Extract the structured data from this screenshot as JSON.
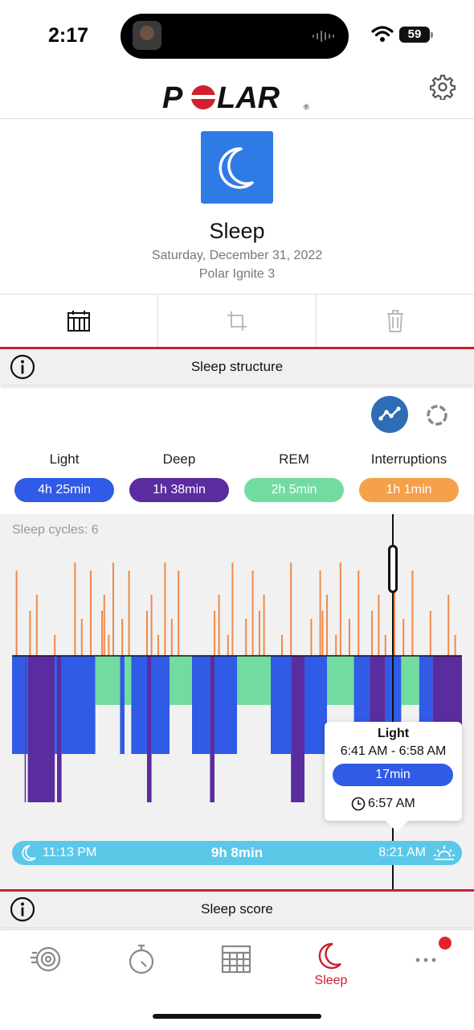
{
  "status_bar": {
    "time": "2:17",
    "battery": "59"
  },
  "header": {
    "logo": "POLAR",
    "settings_icon": "gear-icon"
  },
  "hero": {
    "icon": "moon-icon",
    "title": "Sleep",
    "date": "Saturday, December 31, 2022",
    "device": "Polar Ignite 3"
  },
  "toolbar": {
    "items": [
      {
        "icon": "calendar-icon",
        "enabled": true
      },
      {
        "icon": "crop-icon",
        "enabled": false
      },
      {
        "icon": "trash-icon",
        "enabled": false
      }
    ]
  },
  "sleep_structure": {
    "label": "Sleep structure"
  },
  "stats": [
    {
      "label": "Light",
      "value": "4h 25min",
      "color": "#2f5be6"
    },
    {
      "label": "Deep",
      "value": "1h 38min",
      "color": "#5a2ca0"
    },
    {
      "label": "REM",
      "value": "2h 5min",
      "color": "#72dca0"
    },
    {
      "label": "Interruptions",
      "value": "1h 1min",
      "color": "#f5a04a"
    }
  ],
  "chart": {
    "cycles_label": "Sleep cycles: 6",
    "start_time": "11:13 PM",
    "end_time": "8:21 AM",
    "duration": "9h 8min",
    "tooltip": {
      "stage": "Light",
      "range": "6:41 AM - 6:58 AM",
      "duration": "17min",
      "cursor_time": "6:57 AM"
    }
  },
  "chart_data": {
    "type": "bar",
    "series_colors": {
      "interruption": "#f08a4b",
      "rem": "#72dca0",
      "light": "#2f5be6",
      "deep": "#5a2ca0"
    },
    "x_range": [
      "11:13 PM",
      "8:21 AM"
    ],
    "stage_levels": [
      "interruption",
      "rem",
      "light",
      "deep"
    ],
    "segments": [
      {
        "stage": "light",
        "s": 0,
        "e": 0.028
      },
      {
        "stage": "deep",
        "s": 0.028,
        "e": 0.03
      },
      {
        "stage": "light",
        "s": 0.03,
        "e": 0.035
      },
      {
        "stage": "deep",
        "s": 0.035,
        "e": 0.095
      },
      {
        "stage": "light",
        "s": 0.095,
        "e": 0.1
      },
      {
        "stage": "deep",
        "s": 0.1,
        "e": 0.11
      },
      {
        "stage": "light",
        "s": 0.11,
        "e": 0.185
      },
      {
        "stage": "rem",
        "s": 0.185,
        "e": 0.24
      },
      {
        "stage": "light",
        "s": 0.24,
        "e": 0.25
      },
      {
        "stage": "rem",
        "s": 0.25,
        "e": 0.265
      },
      {
        "stage": "light",
        "s": 0.265,
        "e": 0.3
      },
      {
        "stage": "deep",
        "s": 0.3,
        "e": 0.31
      },
      {
        "stage": "light",
        "s": 0.31,
        "e": 0.35
      },
      {
        "stage": "rem",
        "s": 0.35,
        "e": 0.4
      },
      {
        "stage": "light",
        "s": 0.4,
        "e": 0.44
      },
      {
        "stage": "deep",
        "s": 0.44,
        "e": 0.45
      },
      {
        "stage": "light",
        "s": 0.45,
        "e": 0.5
      },
      {
        "stage": "rem",
        "s": 0.5,
        "e": 0.575
      },
      {
        "stage": "light",
        "s": 0.575,
        "e": 0.62
      },
      {
        "stage": "deep",
        "s": 0.62,
        "e": 0.65
      },
      {
        "stage": "light",
        "s": 0.65,
        "e": 0.7
      },
      {
        "stage": "rem",
        "s": 0.7,
        "e": 0.76
      },
      {
        "stage": "light",
        "s": 0.76,
        "e": 0.795
      },
      {
        "stage": "deep",
        "s": 0.795,
        "e": 0.83
      },
      {
        "stage": "light",
        "s": 0.83,
        "e": 0.865
      },
      {
        "stage": "rem",
        "s": 0.865,
        "e": 0.905
      },
      {
        "stage": "light",
        "s": 0.905,
        "e": 0.935
      },
      {
        "stage": "deep",
        "s": 0.935,
        "e": 1.0
      }
    ],
    "interruptions": [
      0.01,
      0.04,
      0.055,
      0.095,
      0.14,
      0.155,
      0.175,
      0.2,
      0.205,
      0.215,
      0.225,
      0.245,
      0.26,
      0.3,
      0.31,
      0.325,
      0.34,
      0.355,
      0.37,
      0.45,
      0.46,
      0.48,
      0.49,
      0.52,
      0.535,
      0.55,
      0.56,
      0.6,
      0.62,
      0.665,
      0.685,
      0.69,
      0.7,
      0.72,
      0.73,
      0.75,
      0.77,
      0.8,
      0.815,
      0.83,
      0.85,
      0.87,
      0.89,
      0.93,
      0.97,
      0.985
    ]
  },
  "sleep_score": {
    "label": "Sleep score"
  },
  "bottom_nav": {
    "items": [
      {
        "icon": "activity-icon",
        "label": ""
      },
      {
        "icon": "stopwatch-icon",
        "label": ""
      },
      {
        "icon": "calendar-icon",
        "label": ""
      },
      {
        "icon": "moon-icon",
        "label": "Sleep"
      },
      {
        "icon": "more-icon",
        "label": ""
      }
    ]
  }
}
